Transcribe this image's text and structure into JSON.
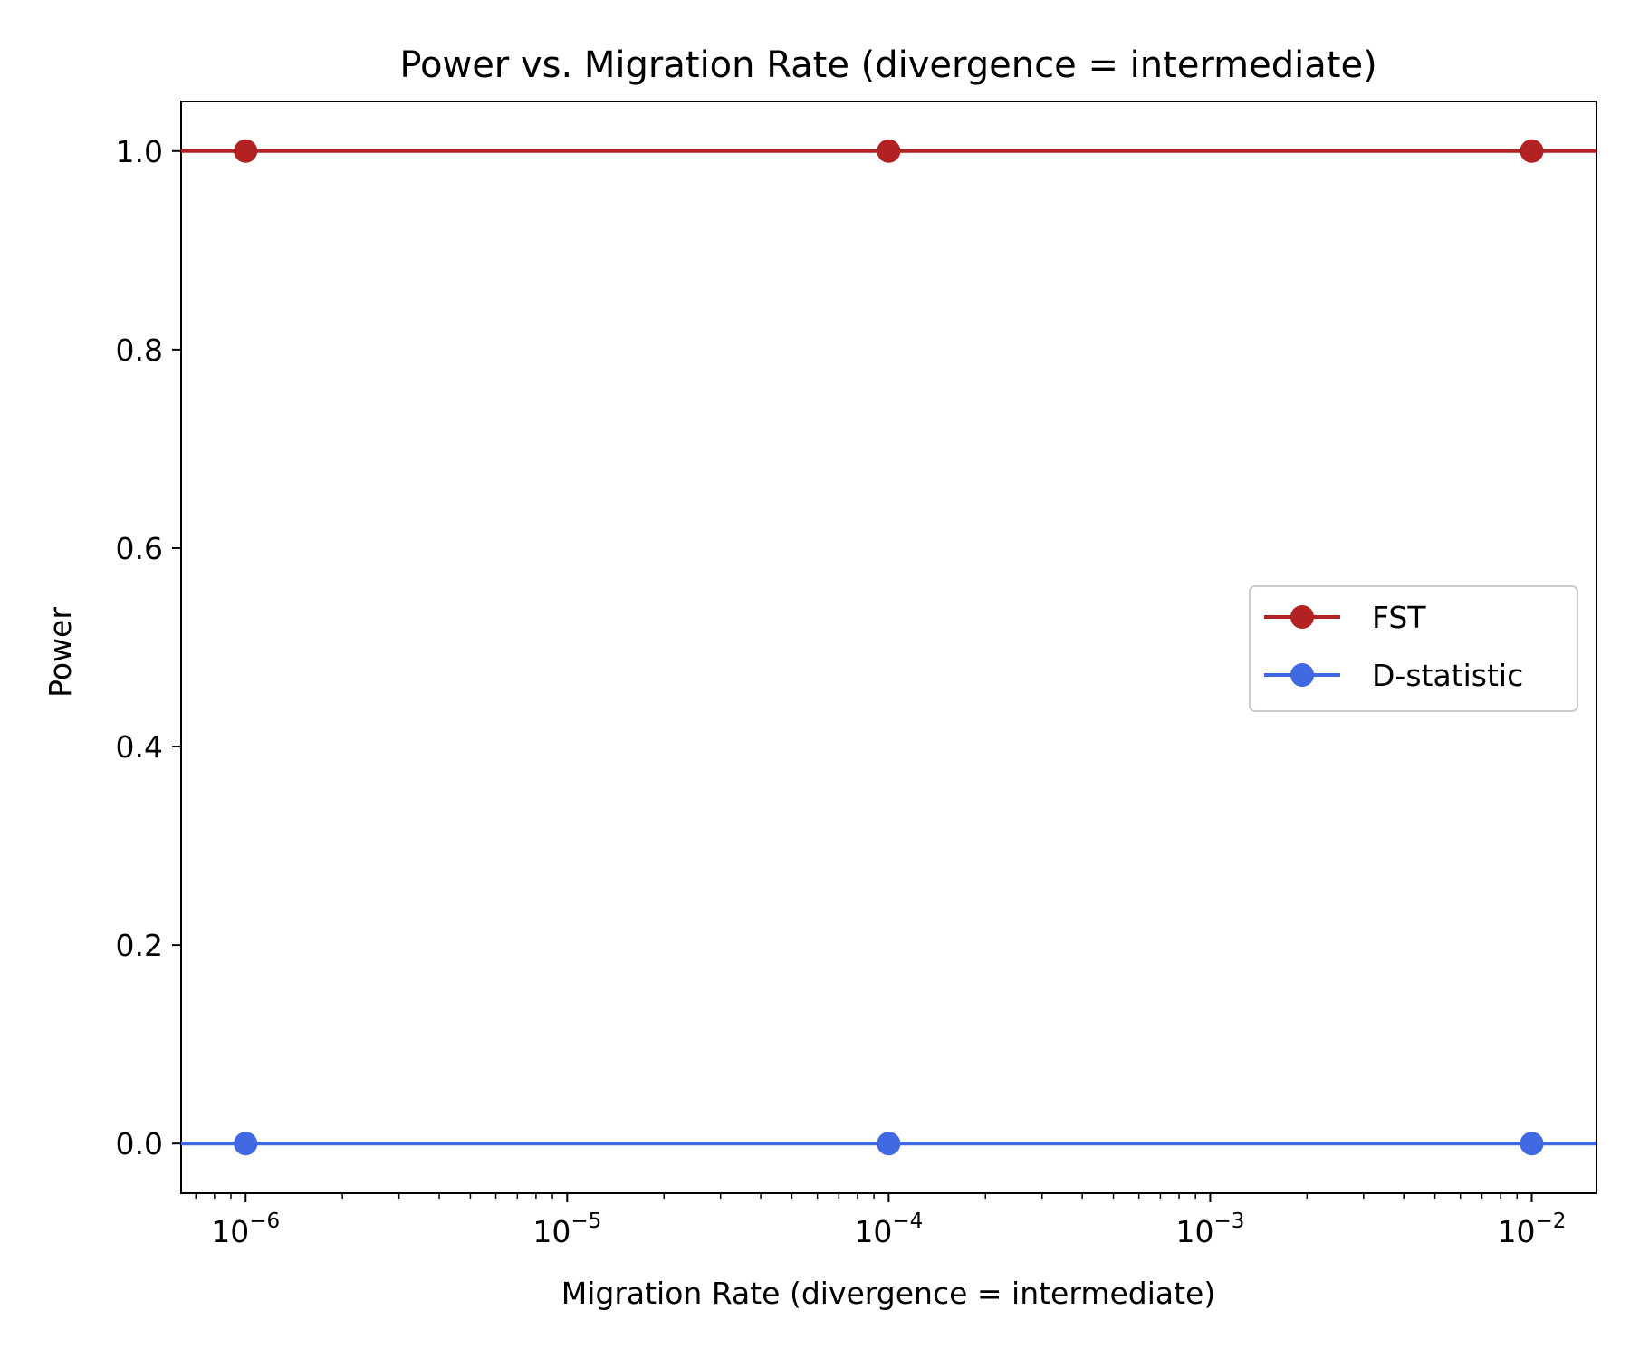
{
  "chart_data": {
    "type": "line",
    "title": "Power vs. Migration Rate (divergence = intermediate)",
    "xlabel": "Migration Rate (divergence = intermediate)",
    "ylabel": "Power",
    "xscale": "log",
    "x": [
      1e-06,
      0.0001,
      0.01
    ],
    "xlim": [
      6.3e-07,
      0.0159
    ],
    "ylim": [
      -0.05,
      1.05
    ],
    "series": [
      {
        "name": "FST",
        "color": "#b22222",
        "values": [
          1.0,
          1.0,
          1.0
        ]
      },
      {
        "name": "D-statistic",
        "color": "#4169e1",
        "values": [
          0.0,
          0.0,
          0.0
        ]
      }
    ],
    "yticks": [
      {
        "value": 0.0,
        "label": "0.0"
      },
      {
        "value": 0.2,
        "label": "0.2"
      },
      {
        "value": 0.4,
        "label": "0.4"
      },
      {
        "value": 0.6,
        "label": "0.6"
      },
      {
        "value": 0.8,
        "label": "0.8"
      },
      {
        "value": 1.0,
        "label": "1.0"
      }
    ],
    "xticks": [
      {
        "value": 1e-06,
        "base": "10",
        "exponent": "−6"
      },
      {
        "value": 1e-05,
        "base": "10",
        "exponent": "−5"
      },
      {
        "value": 0.0001,
        "base": "10",
        "exponent": "−4"
      },
      {
        "value": 0.001,
        "base": "10",
        "exponent": "−3"
      },
      {
        "value": 0.01,
        "base": "10",
        "exponent": "−2"
      }
    ],
    "grid": false,
    "legend": "center-right"
  }
}
